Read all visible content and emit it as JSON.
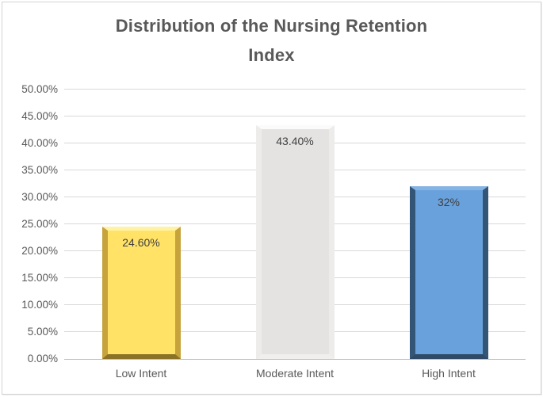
{
  "chart_data": {
    "type": "bar",
    "title": "Distribution of the Nursing Retention Index",
    "title_lines": [
      "Distribution of the Nursing Retention",
      "Index"
    ],
    "categories": [
      "Low Intent",
      "Moderate Intent",
      "High Intent"
    ],
    "values": [
      24.6,
      43.4,
      32
    ],
    "data_labels": [
      "24.60%",
      "43.40%",
      "32%"
    ],
    "xlabel": "",
    "ylabel": "",
    "ylim": [
      0,
      50
    ],
    "ytick_step": 5,
    "ytick_labels": [
      "0.00%",
      "5.00%",
      "10.00%",
      "15.00%",
      "20.00%",
      "25.00%",
      "30.00%",
      "35.00%",
      "40.00%",
      "45.00%",
      "50.00%"
    ],
    "grid": true,
    "legend_position": "none",
    "bar_styles": [
      {
        "name": "low-intent",
        "fill": "#FFE266",
        "edge_side": "#C7A33C",
        "edge_bottom": "#8C7128",
        "edge_top": "#FFF2A6"
      },
      {
        "name": "moderate-intent",
        "fill": "#E4E3E2",
        "edge_side": "#EDECEB",
        "edge_bottom": "#F0EFEE",
        "edge_top": "#FBFBFB"
      },
      {
        "name": "high-intent",
        "fill": "#68A1DC",
        "edge_side": "#335677",
        "edge_bottom": "#2E4A66",
        "edge_top": "#85B4E4"
      }
    ],
    "colors": {
      "title_text": "#595959",
      "axis_text": "#595959",
      "data_label_text": "#404040",
      "gridline": "#D9D9D9",
      "axis_line": "#BFBFBF",
      "frame_border": "#D4D4D4",
      "background": "#FFFFFF"
    }
  }
}
